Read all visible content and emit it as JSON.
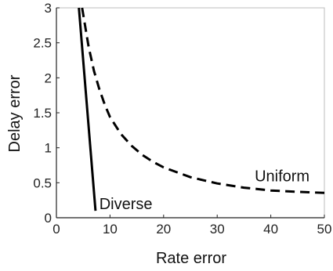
{
  "chart_data": {
    "type": "line",
    "xlabel": "Rate error",
    "ylabel": "Delay error",
    "xlim": [
      0,
      50
    ],
    "ylim": [
      0,
      3
    ],
    "x_ticks": [
      0,
      10,
      20,
      30,
      40,
      50
    ],
    "y_ticks": [
      0,
      0.5,
      1,
      1.5,
      2,
      2.5,
      3
    ],
    "y_tick_labels": [
      "0",
      "0.5",
      "1",
      "1.5",
      "2",
      "2.5",
      "3"
    ],
    "grid": false,
    "legend": "none",
    "series": [
      {
        "name": "Diverse",
        "style": "solid",
        "color": "#000000",
        "x": [
          4.2,
          7.3
        ],
        "y": [
          3.0,
          0.1
        ]
      },
      {
        "name": "Uniform",
        "style": "dashed",
        "color": "#000000",
        "x": [
          4.8,
          6,
          7,
          8,
          9,
          10,
          12,
          14,
          16,
          18,
          20,
          25,
          30,
          35,
          40,
          45,
          50
        ],
        "y": [
          3.0,
          2.45,
          2.1,
          1.84,
          1.62,
          1.44,
          1.2,
          1.03,
          0.9,
          0.8,
          0.72,
          0.58,
          0.49,
          0.43,
          0.39,
          0.37,
          0.355
        ]
      }
    ],
    "annotations": [
      {
        "text": "Diverse",
        "x": 8,
        "y": 0.2
      },
      {
        "text": "Uniform",
        "x": 37,
        "y": 0.6
      }
    ]
  }
}
